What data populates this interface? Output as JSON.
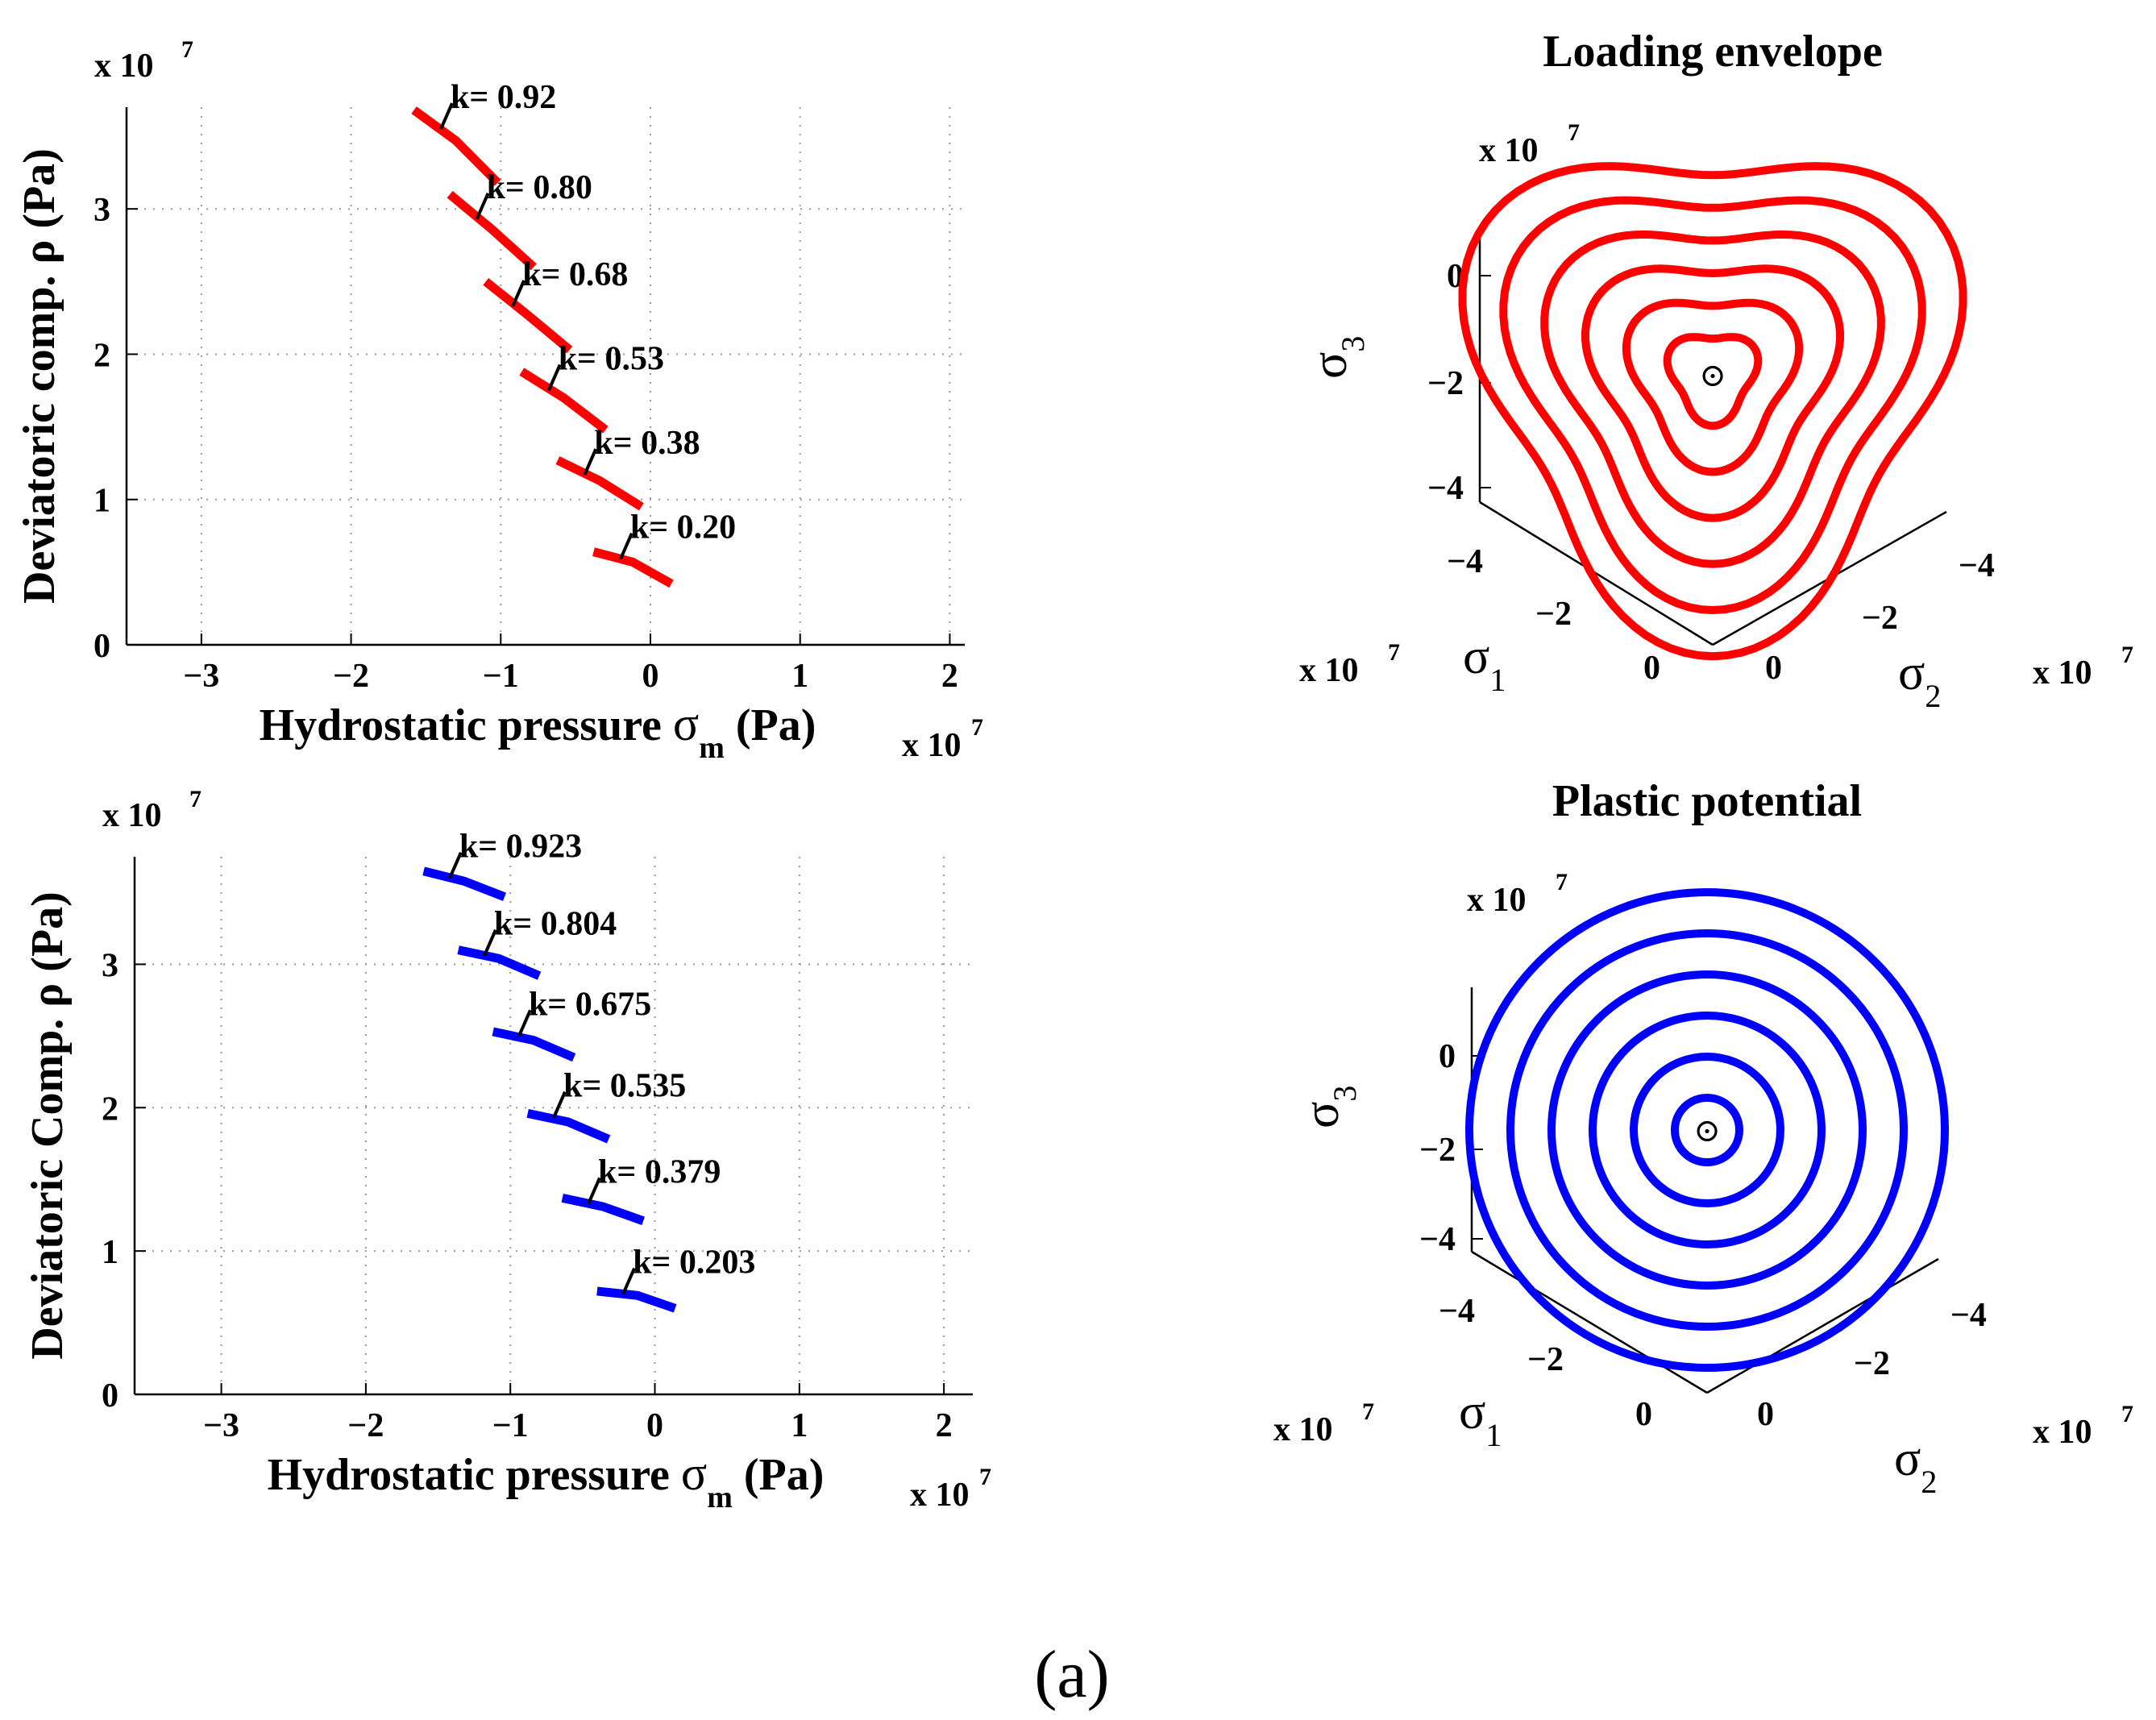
{
  "figure": {
    "panel_label": "(a)",
    "plot_count": 4
  },
  "chart_data": [
    {
      "type": "line",
      "id": "loading-meridian",
      "color": "#ff0000",
      "xlabel": "Hydrostatic pressure",
      "xlabel_symbol": "σ",
      "xlabel_sub": "m",
      "xlabel_unit": "(Pa)",
      "ylabel": "Deviatoric  comp.  ρ (Pa)",
      "x_scale_note": "x 10",
      "x_scale_exp": "7",
      "y_scale_note": "x 10",
      "y_scale_exp": "7",
      "xlim": [
        -3.5,
        2.1
      ],
      "ylim": [
        0,
        3.7
      ],
      "xticks": [
        -3,
        -2,
        -1,
        0,
        1,
        2
      ],
      "yticks": [
        0,
        1,
        2,
        3
      ],
      "grid": true,
      "series": [
        {
          "name": "k= 0.92",
          "x": [
            -1.58,
            -1.3,
            -1.02
          ],
          "y": [
            3.68,
            3.47,
            3.18
          ],
          "label_x": -1.4,
          "label_y": 3.55
        },
        {
          "name": "k= 0.80",
          "x": [
            -1.34,
            -1.06,
            -0.78
          ],
          "y": [
            3.1,
            2.86,
            2.6
          ],
          "label_x": -1.16,
          "label_y": 2.93
        },
        {
          "name": "k= 0.68",
          "x": [
            -1.1,
            -0.82,
            -0.54
          ],
          "y": [
            2.5,
            2.27,
            2.03
          ],
          "label_x": -0.92,
          "label_y": 2.33
        },
        {
          "name": "k= 0.53",
          "x": [
            -0.86,
            -0.58,
            -0.3
          ],
          "y": [
            1.88,
            1.7,
            1.48
          ],
          "label_x": -0.68,
          "label_y": 1.75
        },
        {
          "name": "k= 0.38",
          "x": [
            -0.62,
            -0.34,
            -0.06
          ],
          "y": [
            1.27,
            1.13,
            0.95
          ],
          "label_x": -0.44,
          "label_y": 1.17
        },
        {
          "name": "k= 0.20",
          "x": [
            -0.38,
            -0.12,
            0.14
          ],
          "y": [
            0.64,
            0.57,
            0.42
          ],
          "label_x": -0.2,
          "label_y": 0.59
        }
      ]
    },
    {
      "type": "line",
      "id": "potential-meridian",
      "color": "#0000ff",
      "xlabel": "Hydrostatic pressure",
      "xlabel_symbol": "σ",
      "xlabel_sub": "m",
      "xlabel_unit": "(Pa)",
      "ylabel": "Deviatoric Comp.  ρ (Pa)",
      "x_scale_note": "x 10",
      "x_scale_exp": "7",
      "y_scale_note": "x 10",
      "y_scale_exp": "7",
      "xlim": [
        -3.6,
        2.2
      ],
      "ylim": [
        0,
        3.75
      ],
      "xticks": [
        -3,
        -2,
        -1,
        0,
        1,
        2
      ],
      "yticks": [
        0,
        1,
        2,
        3
      ],
      "grid": true,
      "series": [
        {
          "name": "k= 0.923",
          "x": [
            -1.6,
            -1.32,
            -1.04
          ],
          "y": [
            3.65,
            3.58,
            3.47
          ],
          "label_x": -1.42,
          "label_y": 3.6
        },
        {
          "name": "k= 0.804",
          "x": [
            -1.36,
            -1.08,
            -0.8
          ],
          "y": [
            3.1,
            3.04,
            2.92
          ],
          "label_x": -1.18,
          "label_y": 3.06
        },
        {
          "name": "k= 0.675",
          "x": [
            -1.12,
            -0.84,
            -0.56
          ],
          "y": [
            2.53,
            2.47,
            2.35
          ],
          "label_x": -0.94,
          "label_y": 2.5
        },
        {
          "name": "k= 0.535",
          "x": [
            -0.88,
            -0.6,
            -0.32
          ],
          "y": [
            1.96,
            1.9,
            1.78
          ],
          "label_x": -0.7,
          "label_y": 1.93
        },
        {
          "name": "k= 0.379",
          "x": [
            -0.64,
            -0.36,
            -0.08
          ],
          "y": [
            1.37,
            1.31,
            1.21
          ],
          "label_x": -0.46,
          "label_y": 1.33
        },
        {
          "name": "k= 0.203",
          "x": [
            -0.4,
            -0.12,
            0.14
          ],
          "y": [
            0.72,
            0.69,
            0.6
          ],
          "label_x": -0.22,
          "label_y": 0.7
        }
      ]
    },
    {
      "type": "line",
      "id": "loading-envelope-3d",
      "title": "Loading envelope",
      "color": "#ff0000",
      "shape": "rounded-triangle",
      "contour_count": 6,
      "sigma1_label": "σ",
      "sigma1_sub": "1",
      "sigma2_label": "σ",
      "sigma2_sub": "2",
      "sigma3_label": "σ",
      "sigma3_sub": "3",
      "scale_note": "x 10",
      "scale_exp": "7",
      "sigma3_ticks": [
        "0",
        "−2",
        "−4"
      ],
      "sigma1_ticks": [
        "−4",
        "−2",
        "0"
      ],
      "sigma2_ticks": [
        "−4",
        "−2",
        "0"
      ],
      "center_symbol": "⊙",
      "contour_levels": [
        1,
        2,
        3,
        4,
        5,
        6
      ]
    },
    {
      "type": "line",
      "id": "plastic-potential-3d",
      "title": "Plastic potential",
      "color": "#0000ff",
      "shape": "circle",
      "contour_count": 6,
      "sigma1_label": "σ",
      "sigma1_sub": "1",
      "sigma2_label": "σ",
      "sigma2_sub": "2",
      "sigma3_label": "σ",
      "sigma3_sub": "3",
      "scale_note": "x 10",
      "scale_exp": "7",
      "sigma3_ticks": [
        "0",
        "−2",
        "−4"
      ],
      "sigma1_ticks": [
        "−4",
        "−2",
        "0"
      ],
      "sigma2_ticks": [
        "−4",
        "−2",
        "0"
      ],
      "center_symbol": "⊙",
      "contour_levels": [
        1,
        2,
        3,
        4,
        5,
        6
      ]
    }
  ]
}
